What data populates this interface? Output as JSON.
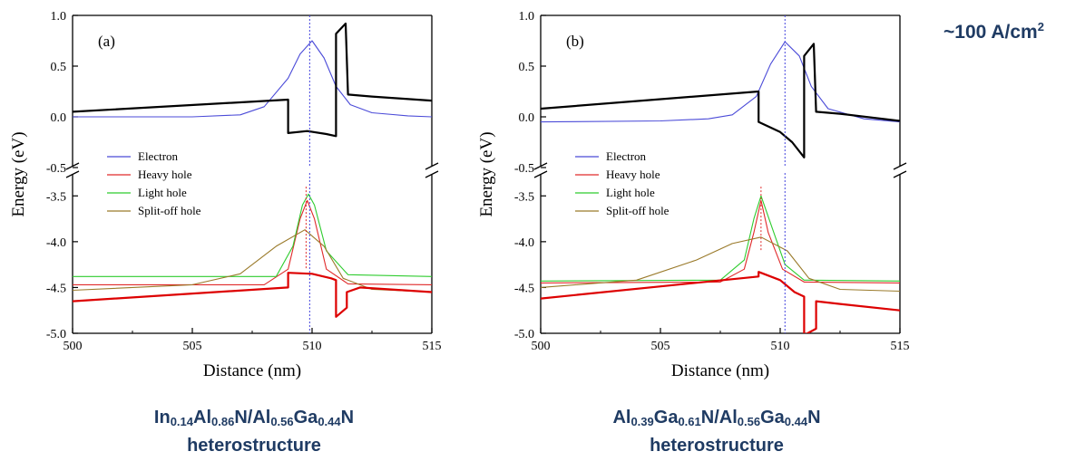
{
  "current_density": {
    "prefix": "~100 A/cm",
    "sup": "2"
  },
  "chart_data": [
    {
      "type": "line",
      "panel_label": "(a)",
      "xlabel": "Distance (nm)",
      "ylabel": "Energy (eV)",
      "xlim": [
        500,
        515
      ],
      "ylim_upper": [
        -0.5,
        1.0
      ],
      "ylim_lower": [
        -5.0,
        -3.25
      ],
      "axis_break": true,
      "x_ticks": [
        500,
        505,
        510,
        515
      ],
      "y_ticks_upper": [
        1.0,
        0.5,
        0.0,
        -0.5
      ],
      "y_ticks_lower": [
        -3.5,
        -4.0,
        -4.5,
        -5.0
      ],
      "legend_position": "middle-left",
      "legend": [
        "Electron",
        "Heavy hole",
        "Light hole",
        "Split-off hole"
      ],
      "series": [
        {
          "name": "Electron",
          "color": "#4b4bd8",
          "points": [
            [
              500,
              0.0
            ],
            [
              505,
              0.0
            ],
            [
              507,
              0.02
            ],
            [
              508,
              0.1
            ],
            [
              509,
              0.38
            ],
            [
              509.5,
              0.62
            ],
            [
              510,
              0.75
            ],
            [
              510.5,
              0.58
            ],
            [
              511,
              0.3
            ],
            [
              511.6,
              0.12
            ],
            [
              512.5,
              0.04
            ],
            [
              514,
              0.01
            ],
            [
              515,
              0.0
            ]
          ]
        },
        {
          "name": "conduction band",
          "color": "#000000",
          "width": 2.2,
          "points": [
            [
              500,
              0.05
            ],
            [
              509,
              0.17
            ],
            [
              509,
              -0.16
            ],
            [
              509.8,
              -0.14
            ],
            [
              510.6,
              -0.17
            ],
            [
              511.0,
              -0.19
            ],
            [
              511.0,
              0.82
            ],
            [
              511.4,
              0.92
            ],
            [
              511.5,
              0.22
            ],
            [
              512.5,
              0.2
            ],
            [
              515,
              0.16
            ]
          ]
        },
        {
          "name": "Heavy hole",
          "color": "#e02a2a",
          "points": [
            [
              500,
              -4.47
            ],
            [
              508,
              -4.47
            ],
            [
              509,
              -4.3
            ],
            [
              509.5,
              -3.75
            ],
            [
              509.8,
              -3.55
            ],
            [
              510.1,
              -3.75
            ],
            [
              510.6,
              -4.3
            ],
            [
              511.5,
              -4.46
            ],
            [
              515,
              -4.47
            ]
          ]
        },
        {
          "name": "Light hole",
          "color": "#2fcc2f",
          "points": [
            [
              500,
              -4.38
            ],
            [
              508.5,
              -4.38
            ],
            [
              509.2,
              -4.05
            ],
            [
              509.6,
              -3.6
            ],
            [
              509.85,
              -3.48
            ],
            [
              510.1,
              -3.6
            ],
            [
              510.6,
              -4.1
            ],
            [
              511.5,
              -4.36
            ],
            [
              515,
              -4.38
            ]
          ]
        },
        {
          "name": "Split-off hole",
          "color": "#9a7a2a",
          "points": [
            [
              500,
              -4.53
            ],
            [
              505,
              -4.47
            ],
            [
              507,
              -4.35
            ],
            [
              508.5,
              -4.05
            ],
            [
              509.7,
              -3.87
            ],
            [
              510.5,
              -4.05
            ],
            [
              511.3,
              -4.4
            ],
            [
              512.5,
              -4.52
            ],
            [
              515,
              -4.55
            ]
          ]
        },
        {
          "name": "valence band",
          "color": "#dd0000",
          "width": 2.2,
          "points": [
            [
              500,
              -4.65
            ],
            [
              509,
              -4.5
            ],
            [
              509,
              -4.34
            ],
            [
              510,
              -4.35
            ],
            [
              510.8,
              -4.4
            ],
            [
              511.0,
              -4.42
            ],
            [
              511.0,
              -4.82
            ],
            [
              511.45,
              -4.72
            ],
            [
              511.45,
              -4.55
            ],
            [
              512,
              -4.5
            ],
            [
              515,
              -4.55
            ]
          ]
        }
      ],
      "markers": [
        {
          "name": "electron peak",
          "x": 509.9,
          "y_range": [
            -0.5,
            1.0
          ],
          "color": "#4444dd",
          "panel": "upper"
        },
        {
          "name": "electron peak",
          "x": 509.9,
          "y_range": [
            -5.0,
            -3.25
          ],
          "color": "#4444dd",
          "panel": "lower"
        },
        {
          "name": "hole peak",
          "x": 509.75,
          "y_range": [
            -4.3,
            -3.4
          ],
          "color": "#e02a2a",
          "panel": "lower"
        }
      ]
    },
    {
      "type": "line",
      "panel_label": "(b)",
      "xlabel": "Distance (nm)",
      "ylabel": "Energy (eV)",
      "xlim": [
        500,
        515
      ],
      "ylim_upper": [
        -0.5,
        1.0
      ],
      "ylim_lower": [
        -5.0,
        -3.25
      ],
      "axis_break": true,
      "x_ticks": [
        500,
        505,
        510,
        515
      ],
      "y_ticks_upper": [
        1.0,
        0.5,
        0.0,
        -0.5
      ],
      "y_ticks_lower": [
        -3.5,
        -4.0,
        -4.5,
        -5.0
      ],
      "legend_position": "middle-left",
      "legend": [
        "Electron",
        "Heavy hole",
        "Light hole",
        "Split-off hole"
      ],
      "series": [
        {
          "name": "Electron",
          "color": "#4b4bd8",
          "points": [
            [
              500,
              -0.05
            ],
            [
              505,
              -0.04
            ],
            [
              507,
              -0.02
            ],
            [
              508,
              0.02
            ],
            [
              509,
              0.2
            ],
            [
              509.6,
              0.52
            ],
            [
              510.2,
              0.74
            ],
            [
              510.8,
              0.6
            ],
            [
              511.3,
              0.3
            ],
            [
              512,
              0.08
            ],
            [
              513.5,
              -0.02
            ],
            [
              515,
              -0.05
            ]
          ]
        },
        {
          "name": "conduction band",
          "color": "#000000",
          "width": 2.2,
          "points": [
            [
              500,
              0.08
            ],
            [
              509.1,
              0.25
            ],
            [
              509.1,
              -0.05
            ],
            [
              510,
              -0.15
            ],
            [
              510.5,
              -0.25
            ],
            [
              511.0,
              -0.4
            ],
            [
              511.0,
              0.6
            ],
            [
              511.4,
              0.72
            ],
            [
              511.5,
              0.05
            ],
            [
              512.5,
              0.03
            ],
            [
              515,
              -0.04
            ]
          ]
        },
        {
          "name": "Heavy hole",
          "color": "#e02a2a",
          "points": [
            [
              500,
              -4.45
            ],
            [
              507.5,
              -4.44
            ],
            [
              508.5,
              -4.3
            ],
            [
              508.9,
              -3.9
            ],
            [
              509.2,
              -3.55
            ],
            [
              509.5,
              -3.9
            ],
            [
              510.1,
              -4.3
            ],
            [
              511,
              -4.44
            ],
            [
              515,
              -4.45
            ]
          ]
        },
        {
          "name": "Light hole",
          "color": "#2fcc2f",
          "points": [
            [
              500,
              -4.43
            ],
            [
              507.5,
              -4.42
            ],
            [
              508.5,
              -4.2
            ],
            [
              508.9,
              -3.75
            ],
            [
              509.2,
              -3.5
            ],
            [
              509.6,
              -3.8
            ],
            [
              510.2,
              -4.25
            ],
            [
              511,
              -4.42
            ],
            [
              515,
              -4.43
            ]
          ]
        },
        {
          "name": "Split-off hole",
          "color": "#9a7a2a",
          "points": [
            [
              500,
              -4.5
            ],
            [
              504,
              -4.42
            ],
            [
              506.5,
              -4.2
            ],
            [
              508,
              -4.02
            ],
            [
              509.2,
              -3.95
            ],
            [
              510.3,
              -4.1
            ],
            [
              511.2,
              -4.4
            ],
            [
              512.5,
              -4.52
            ],
            [
              515,
              -4.54
            ]
          ]
        },
        {
          "name": "valence band",
          "color": "#dd0000",
          "width": 2.2,
          "points": [
            [
              500,
              -4.62
            ],
            [
              509.1,
              -4.38
            ],
            [
              509.1,
              -4.33
            ],
            [
              510,
              -4.42
            ],
            [
              510.6,
              -4.55
            ],
            [
              511.0,
              -4.6
            ],
            [
              511.0,
              -5.02
            ],
            [
              511.5,
              -4.95
            ],
            [
              511.5,
              -4.65
            ],
            [
              512.5,
              -4.68
            ],
            [
              515,
              -4.75
            ]
          ]
        }
      ],
      "markers": [
        {
          "name": "electron peak",
          "x": 510.2,
          "y_range": [
            -0.5,
            1.0
          ],
          "color": "#4444dd",
          "panel": "upper"
        },
        {
          "name": "electron peak",
          "x": 510.2,
          "y_range": [
            -5.0,
            -3.25
          ],
          "color": "#4444dd",
          "panel": "lower"
        },
        {
          "name": "hole peak",
          "x": 509.2,
          "y_range": [
            -4.1,
            -3.4
          ],
          "color": "#e02a2a",
          "panel": "lower"
        }
      ]
    }
  ],
  "captions": [
    {
      "parts": [
        [
          "In",
          ""
        ],
        [
          "0.14",
          "sub"
        ],
        [
          "Al",
          ""
        ],
        [
          "0.86",
          "sub"
        ],
        [
          "N/Al",
          ""
        ],
        [
          "0.56",
          "sub"
        ],
        [
          "Ga",
          ""
        ],
        [
          "0.44",
          "sub"
        ],
        [
          "N",
          ""
        ]
      ],
      "line2": "heterostructure"
    },
    {
      "parts": [
        [
          "Al",
          ""
        ],
        [
          "0.39",
          "sub"
        ],
        [
          "Ga",
          ""
        ],
        [
          "0.61",
          "sub"
        ],
        [
          "N/Al",
          ""
        ],
        [
          "0.56",
          "sub"
        ],
        [
          "Ga",
          ""
        ],
        [
          "0.44",
          "sub"
        ],
        [
          "N",
          ""
        ]
      ],
      "line2": "heterostructure"
    }
  ]
}
